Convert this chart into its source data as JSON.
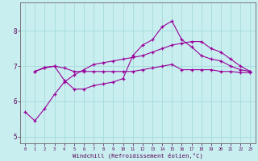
{
  "title": "",
  "xlabel": "Windchill (Refroidissement éolien,°C)",
  "ylabel": "",
  "bg_color": "#c8eef0",
  "line_color": "#990099",
  "grid_color": "#aadddd",
  "xlim": [
    -0.5,
    23.5
  ],
  "ylim": [
    4.8,
    8.8
  ],
  "xticks": [
    0,
    1,
    2,
    3,
    4,
    5,
    6,
    7,
    8,
    9,
    10,
    11,
    12,
    13,
    14,
    15,
    16,
    17,
    18,
    19,
    20,
    21,
    22,
    23
  ],
  "yticks": [
    5,
    6,
    7,
    8
  ],
  "line1_x": [
    0,
    1,
    2,
    3,
    4,
    5,
    6,
    7,
    8,
    9,
    10,
    11,
    12,
    13,
    14,
    15,
    16,
    17,
    18,
    19,
    20,
    21,
    22,
    23
  ],
  "line1_y": [
    5.7,
    5.45,
    5.8,
    6.2,
    6.55,
    6.75,
    6.9,
    7.05,
    7.1,
    7.15,
    7.2,
    7.25,
    7.3,
    7.4,
    7.5,
    7.6,
    7.65,
    7.7,
    7.7,
    7.5,
    7.4,
    7.2,
    7.0,
    6.85
  ],
  "line2_x": [
    1,
    2,
    3,
    4,
    5,
    6,
    7,
    8,
    9,
    10,
    11,
    12,
    13,
    14,
    15,
    16,
    17,
    18,
    19,
    20,
    21,
    22,
    23
  ],
  "line2_y": [
    6.85,
    6.97,
    7.0,
    6.6,
    6.35,
    6.35,
    6.45,
    6.5,
    6.55,
    6.65,
    7.3,
    7.6,
    7.75,
    8.12,
    8.28,
    7.75,
    7.55,
    7.3,
    7.2,
    7.15,
    7.0,
    6.9,
    6.85
  ],
  "line3_x": [
    1,
    2,
    3,
    4,
    5,
    6,
    7,
    8,
    9,
    10,
    11,
    12,
    13,
    14,
    15,
    16,
    17,
    18,
    19,
    20,
    21,
    22,
    23
  ],
  "line3_y": [
    6.85,
    6.95,
    7.0,
    6.95,
    6.85,
    6.85,
    6.85,
    6.85,
    6.85,
    6.85,
    6.85,
    6.9,
    6.95,
    7.0,
    7.05,
    6.9,
    6.9,
    6.9,
    6.9,
    6.85,
    6.85,
    6.82,
    6.82
  ]
}
